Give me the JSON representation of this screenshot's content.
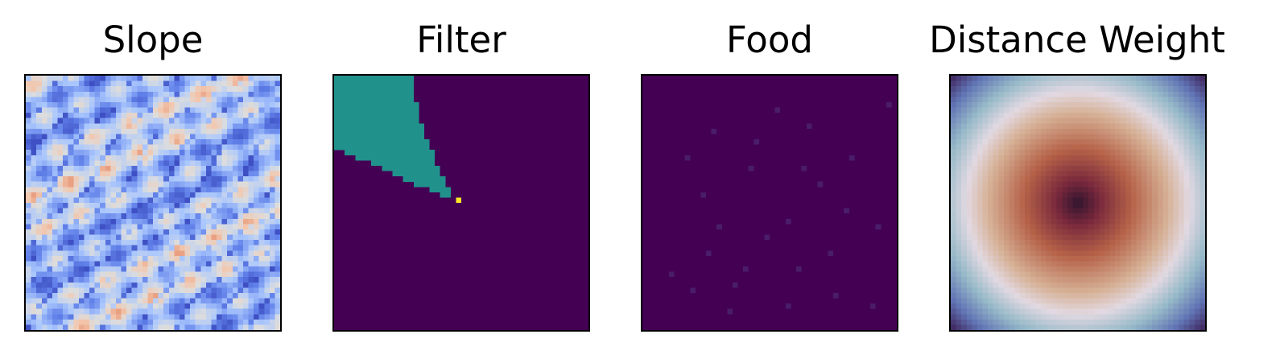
{
  "chart_data": [
    {
      "type": "heatmap",
      "title": "Slope",
      "grid_size": 48,
      "colormap": "coolwarm",
      "axes": "hidden",
      "description_values": "terrain slope field with ridge-like dark blue streaks on light blue / beige background"
    },
    {
      "type": "heatmap",
      "title": "Filter",
      "grid_size": 48,
      "colormap": "viridis",
      "axes": "hidden",
      "categories": [
        "outside",
        "view cone",
        "agent"
      ],
      "values": [
        0,
        0.5,
        1
      ],
      "agent_cell": [
        23,
        23
      ],
      "cone_direction": "up-left"
    },
    {
      "type": "heatmap",
      "title": "Food",
      "grid_size": 48,
      "colormap": "viridis",
      "axes": "hidden",
      "food_cells": [
        [
          13,
          10
        ],
        [
          8,
          15
        ],
        [
          20,
          17
        ],
        [
          31,
          9
        ],
        [
          11,
          22
        ],
        [
          27,
          27
        ],
        [
          23,
          30
        ],
        [
          35,
          33
        ],
        [
          19,
          36
        ],
        [
          9,
          40
        ],
        [
          36,
          41
        ],
        [
          27,
          43
        ],
        [
          17,
          39
        ],
        [
          33,
          20
        ],
        [
          21,
          12
        ],
        [
          14,
          28
        ],
        [
          25,
          6
        ],
        [
          38,
          25
        ],
        [
          16,
          44
        ],
        [
          29,
          36
        ],
        [
          43,
          43
        ],
        [
          46,
          5
        ],
        [
          44,
          28
        ],
        [
          5,
          37
        ],
        [
          12,
          33
        ],
        [
          39,
          15
        ],
        [
          30,
          17
        ]
      ]
    },
    {
      "type": "heatmap",
      "title": "Distance Weight",
      "grid_size": 48,
      "colormap": "twilight_shifted",
      "axes": "hidden",
      "center": [
        24,
        24
      ],
      "pattern": "radial"
    }
  ],
  "colors": {
    "viridis_low": "#440154",
    "viridis_mid": "#21918c",
    "viridis_high": "#fde725"
  }
}
